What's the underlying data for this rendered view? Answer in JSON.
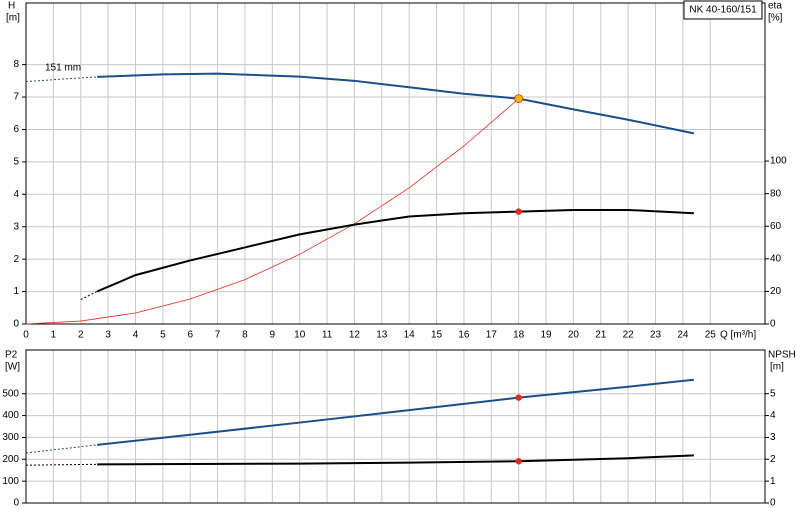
{
  "chart_data": [
    {
      "type": "line",
      "title": "NK 40-160/151",
      "annotation": "151 mm",
      "ylabel": "H",
      "yunit": "[m]",
      "y2label": "eta",
      "y2unit": "[%]",
      "xlabel": "Q [m³/h]",
      "xlim": [
        0,
        27
      ],
      "xticks": [
        0,
        1,
        2,
        3,
        4,
        5,
        6,
        7,
        8,
        9,
        10,
        11,
        12,
        13,
        14,
        15,
        16,
        17,
        18,
        19,
        20,
        21,
        22,
        23,
        24,
        25
      ],
      "ylim": [
        0,
        9.9
      ],
      "yticks": [
        0,
        1,
        2,
        3,
        4,
        5,
        6,
        7,
        8
      ],
      "y2lim": [
        0,
        197
      ],
      "y2ticks": [
        0,
        20,
        40,
        60,
        80,
        100
      ],
      "grid": true,
      "series": [
        {
          "color": "#1b4f8c",
          "style": "dashed",
          "axis": "y",
          "x": [
            0,
            2.6
          ],
          "values": [
            7.48,
            7.62
          ]
        },
        {
          "color": "#1b4f8c",
          "style": "solid",
          "axis": "y",
          "x": [
            2.6,
            5,
            7,
            10,
            12,
            14,
            16,
            18,
            20,
            22,
            24.4
          ],
          "values": [
            7.62,
            7.7,
            7.72,
            7.63,
            7.5,
            7.3,
            7.1,
            6.95,
            6.62,
            6.3,
            5.88
          ]
        },
        {
          "color": "#e8281e",
          "style": "thin",
          "axis": "y",
          "x": [
            0,
            2,
            4,
            6,
            8,
            10,
            12,
            14,
            16,
            18
          ],
          "values": [
            0,
            0.09,
            0.34,
            0.77,
            1.37,
            2.15,
            3.09,
            4.2,
            5.49,
            6.95
          ]
        },
        {
          "color": "#000000",
          "style": "dashed",
          "axis": "y2",
          "x": [
            2,
            2.6
          ],
          "values": [
            15,
            20
          ]
        },
        {
          "color": "#000000",
          "style": "solid",
          "axis": "y2",
          "x": [
            2.6,
            4,
            6,
            8,
            10,
            12,
            14,
            16,
            18,
            20,
            22,
            24.4
          ],
          "values": [
            20,
            30,
            39,
            47,
            55,
            61,
            66,
            68,
            69,
            70,
            70,
            68
          ]
        }
      ],
      "markers": [
        {
          "color": "#f5b800",
          "axis": "y",
          "x": 18,
          "value": 6.95
        },
        {
          "color": "#e8281e",
          "axis": "y2",
          "x": 18,
          "value": 69
        }
      ]
    },
    {
      "type": "line",
      "ylabel": "P2",
      "yunit": "[W]",
      "y2label": "NPSH",
      "y2unit": "[m]",
      "xlim": [
        0,
        27
      ],
      "ylim": [
        0,
        700
      ],
      "yticks": [
        0,
        100,
        200,
        300,
        400,
        500
      ],
      "y2lim": [
        0,
        7
      ],
      "y2ticks": [
        0,
        1,
        2,
        3,
        4,
        5
      ],
      "grid": true,
      "series": [
        {
          "color": "#1b4f8c",
          "style": "dashed",
          "axis": "y",
          "x": [
            0,
            2.6
          ],
          "values": [
            229,
            266
          ]
        },
        {
          "color": "#1b4f8c",
          "style": "solid",
          "axis": "y",
          "x": [
            2.6,
            6,
            10,
            14,
            18,
            22,
            24.4
          ],
          "values": [
            266,
            312,
            368,
            425,
            482,
            532,
            564
          ]
        },
        {
          "color": "#000000",
          "style": "dashed",
          "axis": "y2",
          "x": [
            0,
            2.6
          ],
          "values": [
            1.73,
            1.77
          ]
        },
        {
          "color": "#000000",
          "style": "solid",
          "axis": "y2",
          "x": [
            2.6,
            10,
            14,
            18,
            22,
            24.4
          ],
          "values": [
            1.77,
            1.8,
            1.85,
            1.91,
            2.05,
            2.18
          ]
        }
      ],
      "markers": [
        {
          "color": "#e8281e",
          "axis": "y",
          "x": 18,
          "value": 482
        },
        {
          "color": "#e8281e",
          "axis": "y2",
          "x": 18,
          "value": 1.91
        }
      ]
    }
  ]
}
